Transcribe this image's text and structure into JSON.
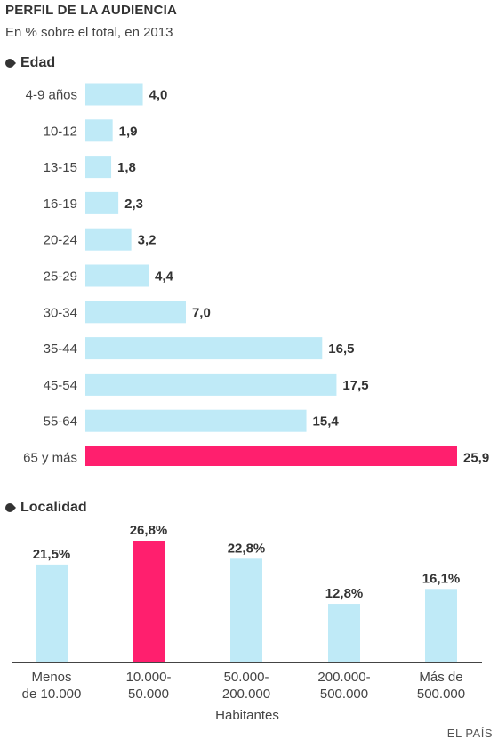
{
  "header": {
    "title": "PERFIL DE LA AUDIENCIA",
    "subtitle": "En % sobre el total, en 2013"
  },
  "sections": {
    "edad": "Edad",
    "localidad": "Localidad"
  },
  "footer": {
    "source": "EL PAÍS"
  },
  "colors": {
    "bar": "#bfeaf7",
    "highlight": "#ff1f6e",
    "text": "#333333",
    "axis": "#444444"
  },
  "chart_data": [
    {
      "type": "bar",
      "orientation": "horizontal",
      "title": "Edad",
      "categories": [
        "4-9 años",
        "10-12",
        "13-15",
        "16-19",
        "20-24",
        "25-29",
        "30-34",
        "35-44",
        "45-54",
        "55-64",
        "65 y más"
      ],
      "values": [
        4.0,
        1.9,
        1.8,
        2.3,
        3.2,
        4.4,
        7.0,
        16.5,
        17.5,
        15.4,
        25.9
      ],
      "value_labels": [
        "4,0",
        "1,9",
        "1,8",
        "2,3",
        "3,2",
        "4,4",
        "7,0",
        "16,5",
        "17,5",
        "15,4",
        "25,9"
      ],
      "highlight_index": 10,
      "xlim": [
        0,
        25.9
      ]
    },
    {
      "type": "bar",
      "orientation": "vertical",
      "title": "Localidad",
      "categories": [
        [
          "Menos",
          "de 10.000"
        ],
        [
          "10.000-",
          "50.000"
        ],
        [
          "50.000-",
          "200.000"
        ],
        [
          "200.000-",
          "500.000"
        ],
        [
          "Más de",
          "500.000"
        ]
      ],
      "values": [
        21.5,
        26.8,
        22.8,
        12.8,
        16.1
      ],
      "value_labels": [
        "21,5%",
        "26,8%",
        "22,8%",
        "12,8%",
        "16,1%"
      ],
      "highlight_index": 1,
      "xlabel": "Habitantes",
      "ylim": [
        0,
        26.8
      ]
    }
  ]
}
